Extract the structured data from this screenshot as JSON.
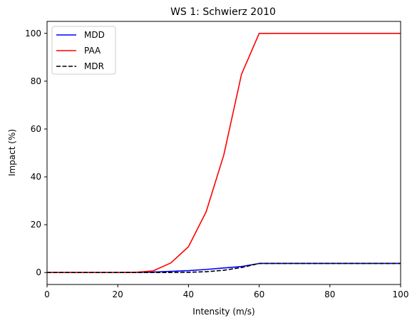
{
  "chart_data": {
    "type": "line",
    "title": "WS 1: Schwierz 2010",
    "xlabel": "Intensity (m/s)",
    "ylabel": "Impact (%)",
    "xlim": [
      0,
      100
    ],
    "ylim": [
      -5,
      105
    ],
    "xticks": [
      0,
      20,
      40,
      60,
      80,
      100
    ],
    "yticks": [
      0,
      20,
      40,
      60,
      80,
      100
    ],
    "grid": false,
    "legend_position": "top-left",
    "x": [
      0,
      5,
      10,
      15,
      20,
      25,
      30,
      35,
      40,
      45,
      50,
      55,
      60,
      65,
      70,
      75,
      80,
      85,
      90,
      95,
      100
    ],
    "series": [
      {
        "name": "MDD",
        "color": "#0000ff",
        "dash": "solid",
        "values": [
          0,
          0,
          0,
          0,
          0,
          0.05,
          0.2,
          0.5,
          0.8,
          1.3,
          1.9,
          2.5,
          3.8,
          3.8,
          3.8,
          3.8,
          3.8,
          3.8,
          3.8,
          3.8,
          3.8
        ]
      },
      {
        "name": "PAA",
        "color": "#ff0000",
        "dash": "solid",
        "values": [
          0,
          0,
          0,
          0,
          0,
          0.1,
          0.7,
          4.0,
          10.8,
          25.4,
          49.2,
          82.9,
          100,
          100,
          100,
          100,
          100,
          100,
          100,
          100,
          100
        ]
      },
      {
        "name": "MDR",
        "color": "#000000",
        "dash": "dashed",
        "values": [
          0,
          0,
          0,
          0,
          0,
          0,
          0,
          0.02,
          0.1,
          0.35,
          0.95,
          2.1,
          3.8,
          3.8,
          3.8,
          3.8,
          3.8,
          3.8,
          3.8,
          3.8,
          3.8
        ]
      }
    ]
  }
}
